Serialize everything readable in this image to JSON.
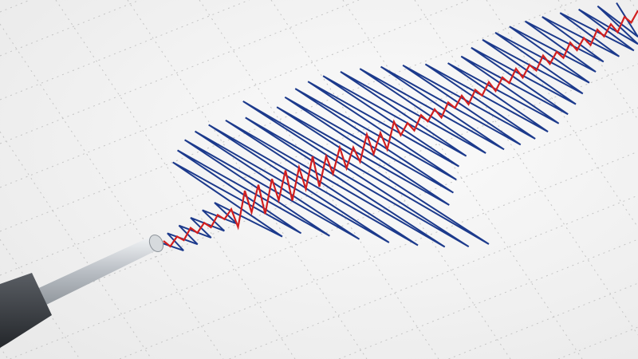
{
  "scene": {
    "subject": "seismograph-recording",
    "colors": {
      "paper": "#f4f4f4",
      "grid_dots": "#c4c4c4",
      "blue_trace": "#1c3a8c",
      "red_trace": "#d21f1f",
      "stylus_body": "#3a3d42",
      "stylus_rod": "#c8ccd0"
    }
  }
}
